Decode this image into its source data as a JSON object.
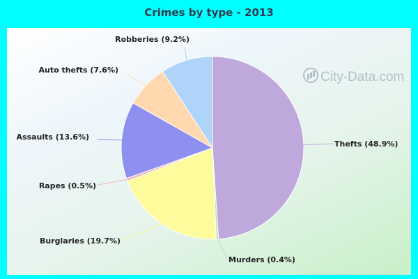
{
  "chart_data": {
    "type": "pie",
    "title": "Crimes by type - 2013",
    "slices": [
      {
        "label": "Thefts (48.9%)",
        "value": 48.9,
        "color": "#bfa8dc"
      },
      {
        "label": "Murders (0.4%)",
        "value": 0.4,
        "color": "#c8dcb4"
      },
      {
        "label": "Burglaries (19.7%)",
        "value": 19.7,
        "color": "#fdfb9c"
      },
      {
        "label": "Rapes (0.5%)",
        "value": 0.5,
        "color": "#f0b8c0"
      },
      {
        "label": "Assaults (13.6%)",
        "value": 13.6,
        "color": "#8e90f0"
      },
      {
        "label": "Auto thefts (7.6%)",
        "value": 7.6,
        "color": "#ffd8b0"
      },
      {
        "label": "Robberies (9.2%)",
        "value": 9.2,
        "color": "#aed4fa"
      }
    ]
  },
  "watermark": {
    "text": "City-Data.com",
    "icon": "city-data-logo-icon"
  }
}
